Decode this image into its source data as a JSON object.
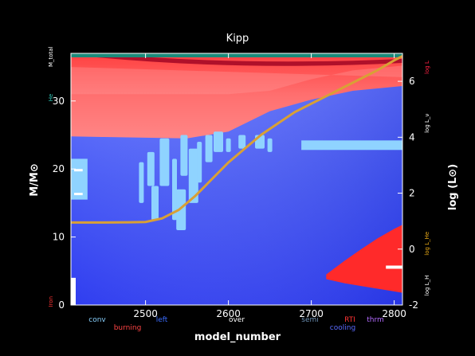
{
  "chart_data": {
    "type": "area",
    "title": "Kipp",
    "xlabel": "model_number",
    "ylabel": "M/M⊙",
    "y2label": "log (L⊙)",
    "xlim": [
      2410,
      2810
    ],
    "ylim": [
      0,
      37
    ],
    "y2lim": [
      -2,
      7
    ],
    "xticks": [
      2500,
      2600,
      2700,
      2800
    ],
    "yticks": [
      0,
      10,
      20,
      30
    ],
    "y2ticks": [
      -2,
      0,
      2,
      4,
      6
    ],
    "left_axis_labels": [
      {
        "text": "M_total",
        "color": "#ffffff",
        "at": 36.5
      },
      {
        "text": "He",
        "color": "#2ec4b6",
        "at": 30.5
      },
      {
        "text": "Iron",
        "color": "#ff3333",
        "at": 0.5
      }
    ],
    "right_axis_labels": [
      {
        "text": "log L",
        "color": "#ff2244",
        "at": 6.5
      },
      {
        "text": "log L_ν",
        "color": "#ffffff",
        "at": 4.5
      },
      {
        "text": "log L_He",
        "color": "#e6a817",
        "at": 0.2
      },
      {
        "text": "log L_H",
        "color": "#ffffff",
        "at": -1.3
      }
    ],
    "legend": [
      {
        "text": "conv",
        "color": "#87cefa"
      },
      {
        "text": "burning",
        "color": "#ff4444"
      },
      {
        "text": "left",
        "color": "#3a6dff"
      },
      {
        "text": "over",
        "color": "#ffffff"
      },
      {
        "text": "semi",
        "color": "#6b8fb3"
      },
      {
        "text": "RTI",
        "color": "#ff3333"
      },
      {
        "text": "cooling",
        "color": "#5b6bff"
      },
      {
        "text": "thrm",
        "color": "#b36bff"
      }
    ],
    "series": [
      {
        "name": "log L",
        "color": "#d9a035",
        "axis": "right",
        "x": [
          2410,
          2450,
          2480,
          2500,
          2520,
          2540,
          2560,
          2580,
          2600,
          2620,
          2640,
          2660,
          2680,
          2700,
          2720,
          2740,
          2760,
          2780,
          2800,
          2810
        ],
        "values": [
          0.95,
          0.95,
          0.96,
          0.97,
          1.1,
          1.4,
          1.9,
          2.5,
          3.1,
          3.6,
          4.1,
          4.5,
          4.9,
          5.2,
          5.5,
          5.8,
          6.1,
          6.4,
          6.75,
          6.9
        ]
      }
    ],
    "regions": {
      "outer_burning_boundary": {
        "x": [
          2410,
          2450,
          2500,
          2550,
          2600,
          2650,
          2700,
          2750,
          2810
        ],
        "values": [
          24.8,
          24.7,
          24.6,
          24.5,
          25.5,
          28.5,
          30.2,
          31.5,
          32.2
        ]
      },
      "core_burning_region": {
        "x": [
          2718,
          2740,
          2760,
          2780,
          2800,
          2810
        ],
        "upper": [
          4.5,
          6.5,
          8.2,
          9.8,
          11.2,
          11.8
        ],
        "lower": [
          3.8,
          3.2,
          2.8,
          2.4,
          2.0,
          1.8
        ]
      }
    }
  }
}
